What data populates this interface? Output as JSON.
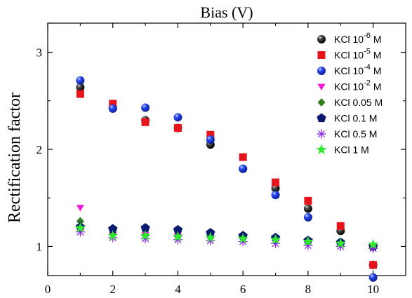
{
  "chart_data": {
    "type": "scatter",
    "xlabel": "Bias (V)",
    "ylabel": "Rectification factor",
    "xlim": [
      0,
      11
    ],
    "ylim": [
      0.7,
      3.3
    ],
    "x_ticks": [
      0,
      2,
      4,
      6,
      8,
      10
    ],
    "y_ticks": [
      1,
      2,
      3
    ],
    "x_tick_labels": [
      "0",
      "2",
      "4",
      "6",
      "8",
      "10"
    ],
    "y_tick_labels": [
      "1",
      "2",
      "3"
    ],
    "legend_position": "top-right",
    "series": [
      {
        "name": "KCl 10-6 M",
        "name_base": "KCl 10",
        "name_exp": "-6",
        "name_unit": "M",
        "marker": "sphere",
        "color": "#000000",
        "x": [
          1,
          2,
          3,
          4,
          5,
          6,
          7,
          8,
          9,
          10
        ],
        "y": [
          2.64,
          2.43,
          2.3,
          2.22,
          2.05,
          1.8,
          1.6,
          1.39,
          1.16,
          0.81
        ]
      },
      {
        "name": "KCl 10-5 M",
        "name_base": "KCl 10",
        "name_exp": "-5",
        "name_unit": "M",
        "marker": "square",
        "color": "#e8141c",
        "x": [
          1,
          2,
          3,
          4,
          5,
          6,
          7,
          8,
          9,
          10
        ],
        "y": [
          2.57,
          2.47,
          2.28,
          2.22,
          2.15,
          1.92,
          1.66,
          1.47,
          1.21,
          0.81
        ]
      },
      {
        "name": "KCl 10-4 M",
        "name_base": "KCl 10",
        "name_exp": "-4",
        "name_unit": "M",
        "marker": "sphere",
        "color": "#1e3ee8",
        "x": [
          1,
          2,
          3,
          4,
          5,
          6,
          7,
          8,
          9,
          10
        ],
        "y": [
          2.71,
          2.42,
          2.43,
          2.33,
          2.1,
          1.8,
          1.53,
          1.3,
          1.04,
          0.68
        ]
      },
      {
        "name": "KCl 10-2 M",
        "name_base": "KCl 10",
        "name_exp": "-2",
        "name_unit": "M",
        "marker": "triangle-down",
        "color": "#f21ad8",
        "x": [
          1,
          2,
          3,
          4,
          5,
          6,
          7,
          8,
          9,
          10
        ],
        "y": [
          1.4,
          1.12,
          1.12,
          1.1,
          1.09,
          1.08,
          1.07,
          1.05,
          1.03,
          0.98
        ]
      },
      {
        "name": "KCl 0.05 M",
        "marker": "diamond",
        "color": "#2f7d1e",
        "x": [
          1,
          2,
          3,
          4,
          5,
          6,
          7,
          8,
          9,
          10
        ],
        "y": [
          1.26,
          1.12,
          1.11,
          1.1,
          1.09,
          1.08,
          1.07,
          1.05,
          1.03,
          0.99
        ]
      },
      {
        "name": "KCl 0.1 M",
        "marker": "pentagon",
        "color": "#0a1a6e",
        "x": [
          1,
          2,
          3,
          4,
          5,
          6,
          7,
          8,
          9,
          10
        ],
        "y": [
          1.2,
          1.18,
          1.19,
          1.17,
          1.14,
          1.11,
          1.09,
          1.06,
          1.04,
          1.0
        ]
      },
      {
        "name": "KCl 0.5 M",
        "marker": "asterisk",
        "color": "#8a2be2",
        "x": [
          1,
          2,
          3,
          4,
          5,
          6,
          7,
          8,
          9,
          10
        ],
        "y": [
          1.15,
          1.09,
          1.08,
          1.07,
          1.06,
          1.05,
          1.03,
          1.01,
          1.0,
          0.98
        ]
      },
      {
        "name": "KCl 1 M",
        "marker": "star",
        "color": "#2fe82f",
        "x": [
          1,
          2,
          3,
          4,
          5,
          6,
          7,
          8,
          9,
          10
        ],
        "y": [
          1.19,
          1.11,
          1.11,
          1.1,
          1.09,
          1.08,
          1.07,
          1.05,
          1.03,
          1.02
        ]
      }
    ]
  }
}
